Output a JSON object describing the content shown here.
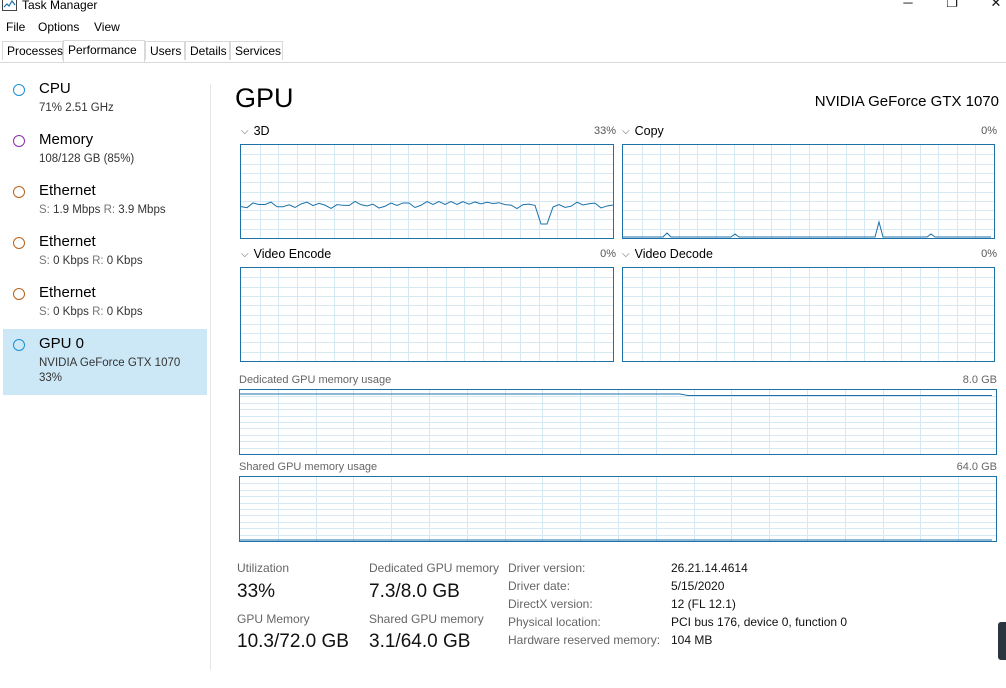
{
  "window": {
    "title": "Task Manager",
    "minimize_glyph": "─",
    "restore_glyph": "❐",
    "close_glyph": "✕"
  },
  "menu": [
    "File",
    "Options",
    "View"
  ],
  "tabs": [
    "Processes",
    "Performance",
    "Users",
    "Details",
    "Services"
  ],
  "active_tab": "Performance",
  "sidebar": {
    "items": [
      {
        "title": "CPU",
        "line1": "71%  2.51 GHz",
        "color": "#1c8fd6"
      },
      {
        "title": "Memory",
        "line1": "108/128 GB (85%)",
        "color": "#8b2fa8"
      },
      {
        "title": "Ethernet",
        "s_label": "S:",
        "s_value": "1.9 Mbps",
        "r_label": "R:",
        "r_value": "3.9 Mbps",
        "color": "#b8621b"
      },
      {
        "title": "Ethernet",
        "s_label": "S:",
        "s_value": "0 Kbps",
        "r_label": "R:",
        "r_value": "0 Kbps",
        "color": "#b8621b"
      },
      {
        "title": "Ethernet",
        "s_label": "S:",
        "s_value": "0 Kbps",
        "r_label": "R:",
        "r_value": "0 Kbps",
        "color": "#b8621b"
      },
      {
        "title": "GPU 0",
        "line1": "NVIDIA GeForce GTX 1070",
        "line2": "33%",
        "color": "#1c8fd6",
        "selected": true
      }
    ]
  },
  "main": {
    "title": "GPU",
    "device_name": "NVIDIA GeForce GTX 1070",
    "graphs": [
      {
        "label": "3D",
        "percent": "33%"
      },
      {
        "label": "Copy",
        "percent": "0%"
      },
      {
        "label": "Video Encode",
        "percent": "0%"
      },
      {
        "label": "Video Decode",
        "percent": "0%"
      }
    ],
    "dedicated_memory": {
      "label": "Dedicated GPU memory usage",
      "max": "8.0 GB"
    },
    "shared_memory": {
      "label": "Shared GPU memory usage",
      "max": "64.0 GB"
    },
    "stats": {
      "utilization_label": "Utilization",
      "utilization_value": "33%",
      "dedicated_label": "Dedicated GPU memory",
      "dedicated_value": "7.3/8.0 GB",
      "gpu_memory_label": "GPU Memory",
      "gpu_memory_value": "10.3/72.0 GB",
      "shared_label": "Shared GPU memory",
      "shared_value": "3.1/64.0 GB"
    },
    "info": [
      {
        "label": "Driver version:",
        "value": "26.21.14.4614"
      },
      {
        "label": "Driver date:",
        "value": "5/15/2020"
      },
      {
        "label": "DirectX version:",
        "value": "12 (FL 12.1)"
      },
      {
        "label": "Physical location:",
        "value": "PCI bus 176, device 0, function 0"
      },
      {
        "label": "Hardware reserved memory:",
        "value": "104 MB"
      }
    ]
  },
  "colors": {
    "accent": "#1c71a9",
    "grid": "#d6e8f4",
    "selected_bg": "#cce8f6"
  }
}
